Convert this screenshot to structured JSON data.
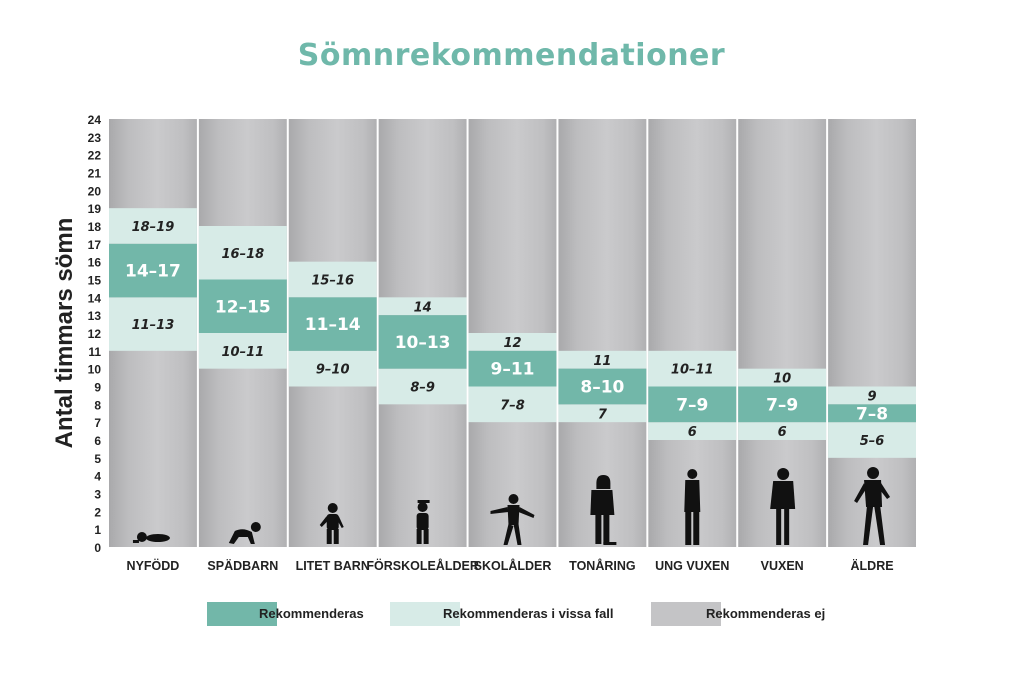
{
  "chart_data": {
    "type": "bar",
    "title": "Sömnrekommendationer",
    "ylabel": "Antal timmars sömn",
    "xlabel": "",
    "ylim": [
      0,
      24
    ],
    "yticks": [
      0,
      1,
      2,
      3,
      4,
      5,
      6,
      7,
      8,
      9,
      10,
      11,
      12,
      13,
      14,
      15,
      16,
      17,
      18,
      19,
      20,
      21,
      22,
      23,
      24
    ],
    "categories": [
      "NYFÖDD",
      "SPÄDBARN",
      "LITET BARN",
      "FÖRSKOLEÅLDER",
      "SKOLÅLDER",
      "TONÅRING",
      "UNG VUXEN",
      "VUXEN",
      "ÄLDRE"
    ],
    "groups": [
      {
        "category": "NYFÖDD",
        "recommended": [
          14,
          17
        ],
        "recommended_label": "14–17",
        "upper": [
          17,
          19
        ],
        "upper_label": "18–19",
        "lower": [
          11,
          14
        ],
        "lower_label": "11–13",
        "icon": "newborn-icon"
      },
      {
        "category": "SPÄDBARN",
        "recommended": [
          12,
          15
        ],
        "recommended_label": "12–15",
        "upper": [
          15,
          18
        ],
        "upper_label": "16–18",
        "lower": [
          10,
          12
        ],
        "lower_label": "10–11",
        "icon": "crawling-baby-icon"
      },
      {
        "category": "LITET BARN",
        "recommended": [
          11,
          14
        ],
        "recommended_label": "11–14",
        "upper": [
          14,
          16
        ],
        "upper_label": "15–16",
        "lower": [
          9,
          11
        ],
        "lower_label": "9–10",
        "icon": "toddler-icon"
      },
      {
        "category": "FÖRSKOLEÅLDER",
        "recommended": [
          10,
          13
        ],
        "recommended_label": "10–13",
        "upper": [
          13,
          14
        ],
        "upper_label": "14",
        "lower": [
          8,
          10
        ],
        "lower_label": "8–9",
        "icon": "preschooler-icon"
      },
      {
        "category": "SKOLÅLDER",
        "recommended": [
          9,
          11
        ],
        "recommended_label": "9–11",
        "upper": [
          11,
          12
        ],
        "upper_label": "12",
        "lower": [
          7,
          9
        ],
        "lower_label": "7–8",
        "icon": "school-child-icon"
      },
      {
        "category": "TONÅRING",
        "recommended": [
          8,
          10
        ],
        "recommended_label": "8–10",
        "upper": [
          10,
          11
        ],
        "upper_label": "11",
        "lower": [
          7,
          8
        ],
        "lower_label": "7",
        "icon": "teenager-icon"
      },
      {
        "category": "UNG VUXEN",
        "recommended": [
          7,
          9
        ],
        "recommended_label": "7–9",
        "upper": [
          9,
          11
        ],
        "upper_label": "10–11",
        "lower": [
          6,
          7
        ],
        "lower_label": "6",
        "icon": "young-adult-icon"
      },
      {
        "category": "VUXEN",
        "recommended": [
          7,
          9
        ],
        "recommended_label": "7–9",
        "upper": [
          9,
          10
        ],
        "upper_label": "10",
        "lower": [
          6,
          7
        ],
        "lower_label": "6",
        "icon": "adult-icon"
      },
      {
        "category": "ÄLDRE",
        "recommended": [
          7,
          8
        ],
        "recommended_label": "7–8",
        "upper": [
          8,
          9
        ],
        "upper_label": "9",
        "lower": [
          5,
          7
        ],
        "lower_label": "5–6",
        "icon": "elderly-icon"
      }
    ],
    "legend": [
      {
        "label": "Rekommenderas",
        "color": "#72b7a9"
      },
      {
        "label": "Rekommenderas i vissa fall",
        "color": "#d7ebe7"
      },
      {
        "label": "Rekommenderas ej",
        "color": "#c4c4c6"
      }
    ],
    "legend_position": "bottom",
    "grid": false
  }
}
